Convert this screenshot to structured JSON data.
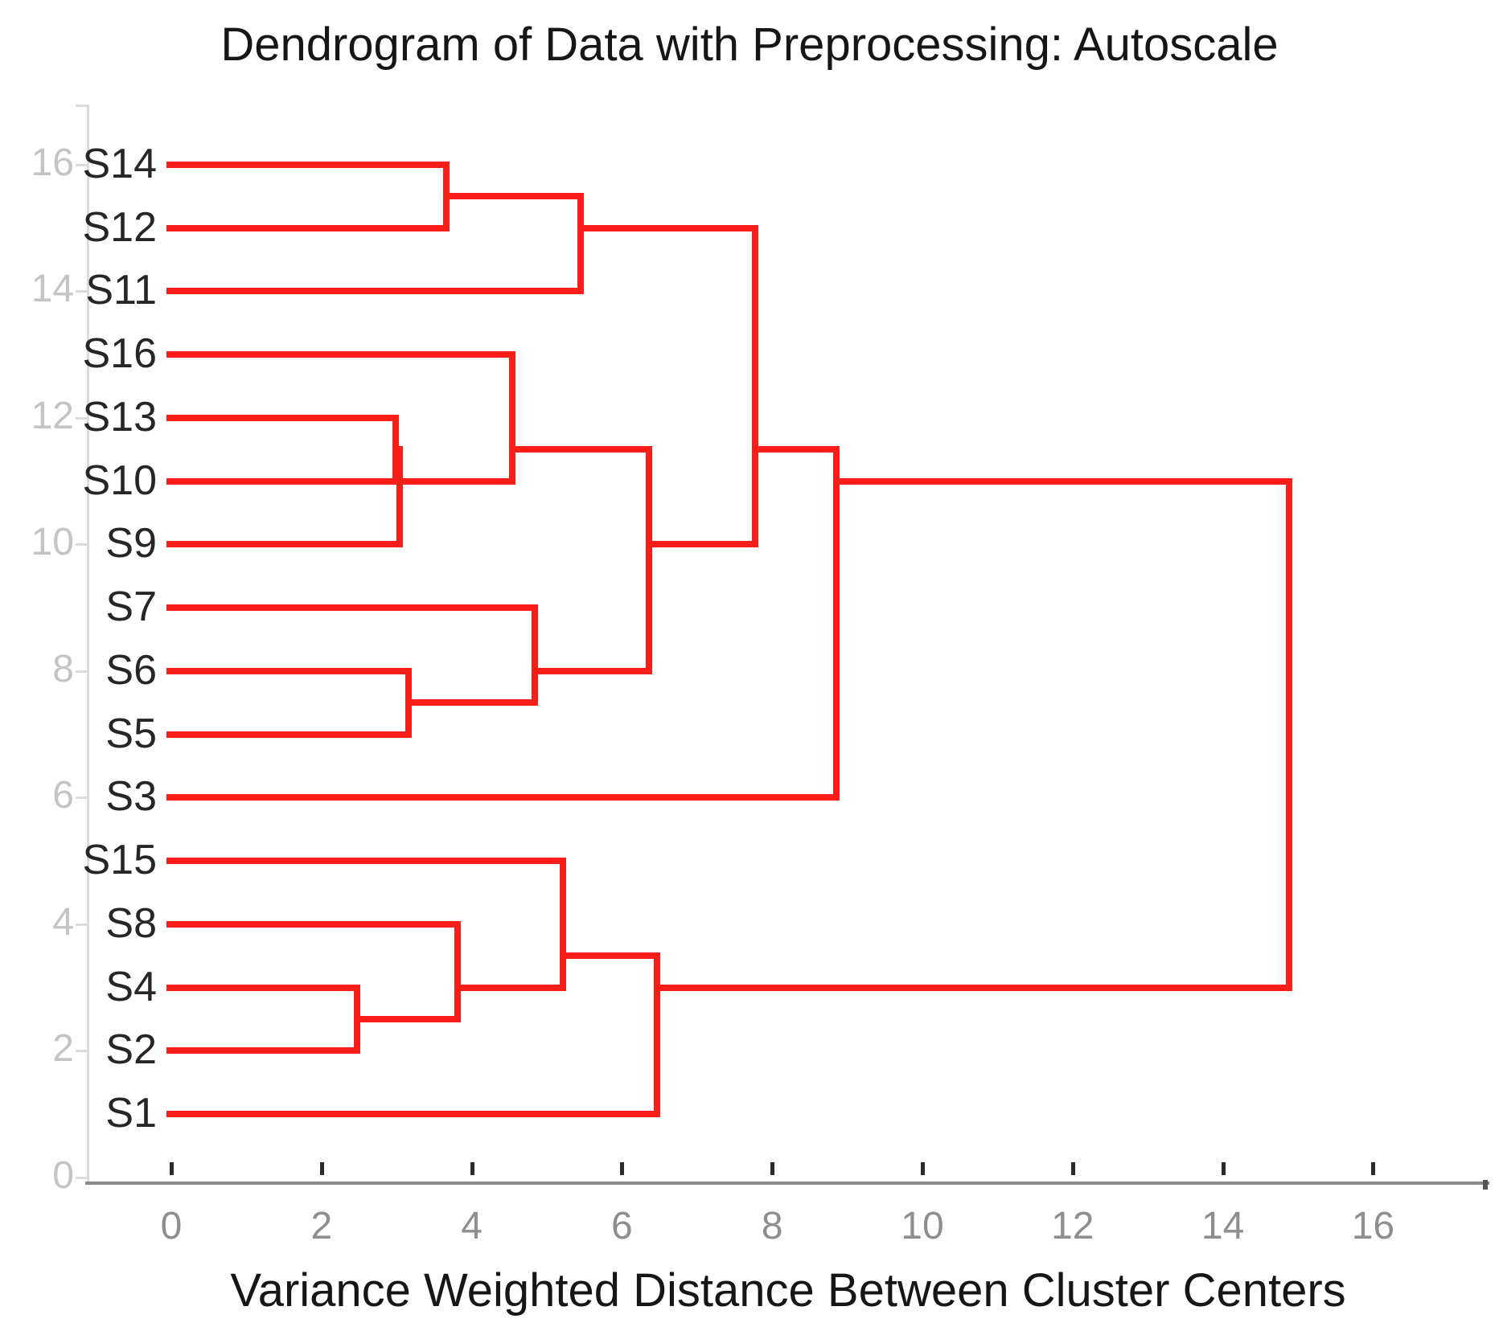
{
  "title": "Dendrogram of Data with Preprocessing: Autoscale",
  "x_axis": {
    "label": "Variance Weighted Distance Between Cluster Centers",
    "tick_labels": [
      "0",
      "2",
      "4",
      "6",
      "8",
      "10",
      "12",
      "14",
      "16"
    ],
    "tick_values": [
      0,
      2,
      4,
      6,
      8,
      10,
      12,
      14,
      16
    ]
  },
  "y_axis": {
    "tick_labels": [
      "16",
      "14",
      "12",
      "10",
      "8",
      "6",
      "4",
      "2",
      "0"
    ],
    "tick_values": [
      16,
      14,
      12,
      10,
      8,
      6,
      4,
      2,
      0
    ]
  },
  "colors": {
    "dendrogram_line": "#fa1e19",
    "title_text": "#161616",
    "leaf_text": "#262626",
    "x_tick_text": "#8e8e8e",
    "y_tick_text": "#c4c4c4",
    "x_axis_line": "#8a8a8a",
    "y_axis_line": "#dcdcdc"
  },
  "chart_data": {
    "type": "dendrogram",
    "orientation": "horizontal",
    "title": "Dendrogram of Data with Preprocessing: Autoscale",
    "xlabel": "Variance Weighted Distance Between Cluster Centers",
    "xlim": [
      0,
      17.5
    ],
    "ylim": [
      0,
      16
    ],
    "grid": false,
    "leaves_top_to_bottom": [
      "S14",
      "S12",
      "S11",
      "S16",
      "S13",
      "S10",
      "S9",
      "S7",
      "S6",
      "S5",
      "S3",
      "S15",
      "S8",
      "S4",
      "S2",
      "S1"
    ],
    "leaf_axis_positions": {
      "S14": 16,
      "S12": 15,
      "S11": 14,
      "S16": 13,
      "S13": 12,
      "S10": 11,
      "S9": 10,
      "S7": 9,
      "S6": 8,
      "S5": 7,
      "S3": 6,
      "S15": 5,
      "S8": 4,
      "S4": 3,
      "S2": 2,
      "S1": 1
    },
    "merges": [
      {
        "id": "M1",
        "a": "S14",
        "b": "S12",
        "distance": 3.66
      },
      {
        "id": "M2",
        "a": "M1",
        "b": "S11",
        "distance": 5.45
      },
      {
        "id": "M3",
        "a": "S13",
        "b": "S10",
        "distance": 2.99
      },
      {
        "id": "M4",
        "a": "M3",
        "b": "S9",
        "distance": 3.04
      },
      {
        "id": "M5",
        "a": "S16",
        "b": "M4",
        "distance": 4.54
      },
      {
        "id": "M6",
        "a": "S6",
        "b": "S5",
        "distance": 3.16
      },
      {
        "id": "M7",
        "a": "S7",
        "b": "M6",
        "distance": 4.84
      },
      {
        "id": "M8",
        "a": "M5",
        "b": "M7",
        "distance": 6.36
      },
      {
        "id": "M9",
        "a": "M2",
        "b": "M8",
        "distance": 7.77
      },
      {
        "id": "M10",
        "a": "M9",
        "b": "S3",
        "distance": 8.85
      },
      {
        "id": "M11",
        "a": "S4",
        "b": "S2",
        "distance": 2.47
      },
      {
        "id": "M12",
        "a": "M11",
        "b": "S8",
        "distance": 3.81
      },
      {
        "id": "M13",
        "a": "M12",
        "b": "S15",
        "distance": 5.21
      },
      {
        "id": "M14",
        "a": "M13",
        "b": "S1",
        "distance": 6.47
      },
      {
        "id": "M15",
        "a": "M10",
        "b": "M14",
        "distance": 14.88
      }
    ]
  }
}
